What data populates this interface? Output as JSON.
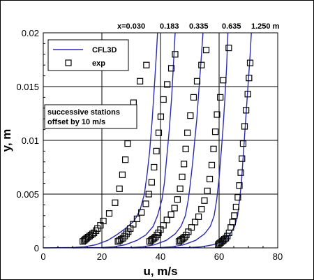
{
  "chart_data": {
    "type": "line",
    "xlabel": "u, m/s",
    "ylabel": "y, m",
    "xlim": [
      0,
      80
    ],
    "ylim": [
      0,
      0.02
    ],
    "xticks": [
      "0",
      "20",
      "40",
      "60",
      "80"
    ],
    "yticks": [
      "0",
      "0.005",
      "0.01",
      "0.015",
      "0.02"
    ],
    "grid": true,
    "legend": {
      "placement": "top-left",
      "entries": [
        "CFL3D",
        "exp"
      ]
    },
    "note_lines": [
      "successive stations",
      "offset by 10 m/s"
    ],
    "station_labels": [
      "x=0.030",
      "0.183",
      "0.335",
      "0.635",
      "1.250 m"
    ],
    "colors": {
      "line": "#2b2bb0",
      "marker": "#000000"
    },
    "series": [
      {
        "name": "CFL3D",
        "kind": "line",
        "curves": [
          {
            "points": [
              [
                0,
                0
              ],
              [
                10,
                3e-05
              ],
              [
                14,
                0.0001
              ],
              [
                18,
                0.0003
              ],
              [
                22,
                0.0007
              ],
              [
                25,
                0.0012
              ],
              [
                28,
                0.0018
              ],
              [
                31,
                0.0025
              ],
              [
                33,
                0.0035
              ],
              [
                34.5,
                0.005
              ],
              [
                35.5,
                0.007
              ],
              [
                36.3,
                0.009
              ],
              [
                37.2,
                0.012
              ],
              [
                37.9,
                0.015
              ],
              [
                38.6,
                0.018
              ],
              [
                39,
                0.02
              ]
            ]
          },
          {
            "points": [
              [
                10,
                0
              ],
              [
                20,
                3e-05
              ],
              [
                24,
                0.0001
              ],
              [
                28,
                0.0003
              ],
              [
                32,
                0.0007
              ],
              [
                35,
                0.0012
              ],
              [
                37.5,
                0.002
              ],
              [
                39,
                0.003
              ],
              [
                40.5,
                0.0045
              ],
              [
                41.3,
                0.006
              ],
              [
                42,
                0.008
              ],
              [
                43,
                0.011
              ],
              [
                43.8,
                0.014
              ],
              [
                44.4,
                0.017
              ],
              [
                45,
                0.02
              ]
            ]
          },
          {
            "points": [
              [
                20,
                0
              ],
              [
                30,
                3e-05
              ],
              [
                34,
                0.0001
              ],
              [
                38,
                0.0003
              ],
              [
                42,
                0.0007
              ],
              [
                45,
                0.0013
              ],
              [
                47,
                0.002
              ],
              [
                48.5,
                0.003
              ],
              [
                49.5,
                0.0045
              ],
              [
                50.2,
                0.006
              ],
              [
                51,
                0.008
              ],
              [
                51.7,
                0.01
              ],
              [
                52.4,
                0.012
              ],
              [
                53.2,
                0.015
              ],
              [
                54,
                0.018
              ],
              [
                54.5,
                0.02
              ]
            ]
          },
          {
            "points": [
              [
                30,
                0
              ],
              [
                40,
                3e-05
              ],
              [
                44,
                0.0001
              ],
              [
                48,
                0.0003
              ],
              [
                52,
                0.0007
              ],
              [
                55,
                0.0013
              ],
              [
                57,
                0.002
              ],
              [
                58.3,
                0.003
              ],
              [
                59.2,
                0.0045
              ],
              [
                60,
                0.0065
              ],
              [
                60.6,
                0.0085
              ],
              [
                61.3,
                0.011
              ],
              [
                62,
                0.014
              ],
              [
                62.6,
                0.017
              ],
              [
                63,
                0.02
              ]
            ]
          },
          {
            "points": [
              [
                40,
                0
              ],
              [
                50,
                3e-05
              ],
              [
                54,
                0.0001
              ],
              [
                58,
                0.0003
              ],
              [
                61,
                0.0006
              ],
              [
                63.5,
                0.0012
              ],
              [
                65.3,
                0.002
              ],
              [
                66.3,
                0.003
              ],
              [
                67,
                0.0045
              ],
              [
                67.6,
                0.006
              ],
              [
                68.1,
                0.008
              ],
              [
                68.6,
                0.01
              ],
              [
                69.1,
                0.012
              ],
              [
                69.6,
                0.014
              ],
              [
                70.1,
                0.016
              ],
              [
                70.6,
                0.018
              ],
              [
                71,
                0.02
              ]
            ]
          }
        ]
      },
      {
        "name": "exp",
        "kind": "markers",
        "points": [
          [
            13.5,
            0.0006
          ],
          [
            14,
            0.0007
          ],
          [
            14.4,
            0.0008
          ],
          [
            14.8,
            0.0009
          ],
          [
            15.3,
            0.001
          ],
          [
            15.8,
            0.0011
          ],
          [
            16.3,
            0.0012
          ],
          [
            16.8,
            0.0013
          ],
          [
            17.3,
            0.0014
          ],
          [
            18,
            0.0016
          ],
          [
            18.5,
            0.0018
          ],
          [
            19.5,
            0.0021
          ],
          [
            20.5,
            0.0025
          ],
          [
            22.5,
            0.0032
          ],
          [
            24.5,
            0.0042
          ],
          [
            26,
            0.0055
          ],
          [
            27,
            0.0068
          ],
          [
            28,
            0.0082
          ],
          [
            28.8,
            0.0097
          ],
          [
            29.5,
            0.0115
          ],
          [
            30.8,
            0.0135
          ],
          [
            33,
            0.0155
          ],
          [
            35.2,
            0.017
          ],
          [
            25.5,
            0.0006
          ],
          [
            26,
            0.0007
          ],
          [
            26.6,
            0.0008
          ],
          [
            27.2,
            0.0009
          ],
          [
            27.8,
            0.0011
          ],
          [
            28.4,
            0.0013
          ],
          [
            29,
            0.0015
          ],
          [
            29.7,
            0.0018
          ],
          [
            30.7,
            0.0022
          ],
          [
            32,
            0.0027
          ],
          [
            33.5,
            0.0033
          ],
          [
            35,
            0.0041
          ],
          [
            36,
            0.005
          ],
          [
            37,
            0.0061
          ],
          [
            37.8,
            0.0075
          ],
          [
            38.6,
            0.009
          ],
          [
            39.4,
            0.0107
          ],
          [
            40.1,
            0.0122
          ],
          [
            41,
            0.0138
          ],
          [
            42.3,
            0.0152
          ],
          [
            43.7,
            0.0167
          ],
          [
            45,
            0.018
          ],
          [
            36.3,
            0.0006
          ],
          [
            36.8,
            0.0007
          ],
          [
            37.3,
            0.0008
          ],
          [
            37.8,
            0.0009
          ],
          [
            38.3,
            0.001
          ],
          [
            38.8,
            0.0012
          ],
          [
            39.3,
            0.0014
          ],
          [
            40,
            0.0017
          ],
          [
            41,
            0.0021
          ],
          [
            42.2,
            0.0026
          ],
          [
            43.6,
            0.0031
          ],
          [
            44.8,
            0.0037
          ],
          [
            45.8,
            0.0045
          ],
          [
            46.7,
            0.0055
          ],
          [
            47.4,
            0.0066
          ],
          [
            48,
            0.0078
          ],
          [
            48.6,
            0.0092
          ],
          [
            49.2,
            0.0107
          ],
          [
            50.2,
            0.0123
          ],
          [
            51.3,
            0.014
          ],
          [
            52.5,
            0.0155
          ],
          [
            54,
            0.017
          ],
          [
            55.6,
            0.0184
          ],
          [
            46.3,
            0.0006
          ],
          [
            46.8,
            0.0007
          ],
          [
            47.3,
            0.0008
          ],
          [
            47.8,
            0.0009
          ],
          [
            48.3,
            0.001
          ],
          [
            48.8,
            0.0012
          ],
          [
            49.5,
            0.0015
          ],
          [
            50.6,
            0.0019
          ],
          [
            51.8,
            0.0024
          ],
          [
            53,
            0.0029
          ],
          [
            54,
            0.0036
          ],
          [
            55,
            0.0044
          ],
          [
            56,
            0.0053
          ],
          [
            56.8,
            0.0064
          ],
          [
            57.5,
            0.0077
          ],
          [
            58.1,
            0.0092
          ],
          [
            58.7,
            0.0108
          ],
          [
            59.3,
            0.0124
          ],
          [
            60.4,
            0.014
          ],
          [
            61.4,
            0.0156
          ],
          [
            63.3,
            0.0186
          ],
          [
            59.7,
            0.0003
          ],
          [
            60.1,
            0.0004
          ],
          [
            60.5,
            0.0005
          ],
          [
            61,
            0.0006
          ],
          [
            61.4,
            0.0007
          ],
          [
            61.8,
            0.0008
          ],
          [
            62.3,
            0.0009
          ],
          [
            62.8,
            0.0011
          ],
          [
            63.4,
            0.0014
          ],
          [
            64,
            0.0019
          ],
          [
            64.6,
            0.0024
          ],
          [
            65.2,
            0.003
          ],
          [
            65.8,
            0.0038
          ],
          [
            66.4,
            0.0047
          ],
          [
            66.9,
            0.0058
          ],
          [
            67.4,
            0.007
          ],
          [
            67.8,
            0.0083
          ],
          [
            68.2,
            0.0097
          ],
          [
            68.7,
            0.0113
          ],
          [
            69.2,
            0.0128
          ],
          [
            69.8,
            0.0143
          ],
          [
            70.2,
            0.0158
          ],
          [
            70.6,
            0.0172
          ]
        ]
      }
    ]
  }
}
